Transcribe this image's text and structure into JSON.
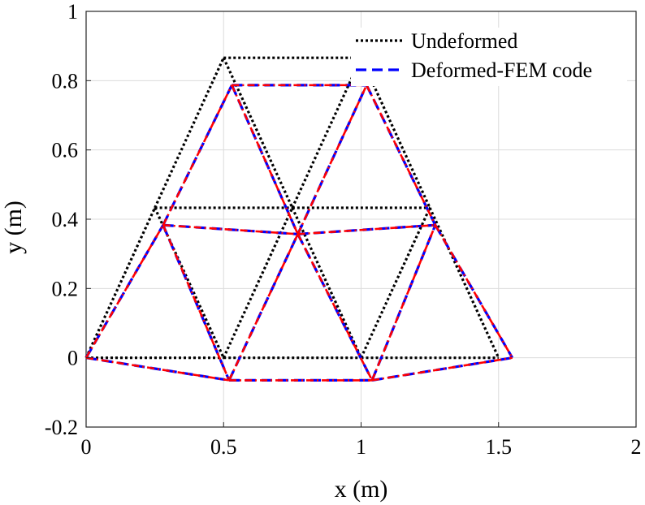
{
  "chart_data": {
    "type": "line",
    "title": "",
    "xlabel": "x (m)",
    "ylabel": "y (m)",
    "xlim": [
      0,
      2
    ],
    "ylim": [
      -0.2,
      1
    ],
    "grid": true,
    "legend_position": "top-right",
    "x_ticks": [
      0,
      0.5,
      1,
      1.5,
      2
    ],
    "x_tick_labels": [
      "0",
      "0.5",
      "1",
      "1.5",
      "2"
    ],
    "y_ticks": [
      -0.2,
      0,
      0.2,
      0.4,
      0.6,
      0.8,
      1
    ],
    "y_tick_labels": [
      "-0.2",
      "0",
      "0.2",
      "0.4",
      "0.6",
      "0.8",
      "1"
    ],
    "series": [
      {
        "name": "Undeformed",
        "color": "#000000",
        "style": "dotted",
        "nodes": [
          [
            0,
            0
          ],
          [
            0.5,
            0
          ],
          [
            1,
            0
          ],
          [
            1.5,
            0
          ],
          [
            0.25,
            0.433
          ],
          [
            0.75,
            0.433
          ],
          [
            1.25,
            0.433
          ],
          [
            0.5,
            0.866
          ],
          [
            1,
            0.866
          ]
        ],
        "members": [
          [
            0,
            1
          ],
          [
            1,
            2
          ],
          [
            2,
            3
          ],
          [
            0,
            4
          ],
          [
            4,
            1
          ],
          [
            1,
            5
          ],
          [
            5,
            2
          ],
          [
            2,
            6
          ],
          [
            6,
            3
          ],
          [
            4,
            5
          ],
          [
            5,
            6
          ],
          [
            4,
            7
          ],
          [
            7,
            5
          ],
          [
            5,
            8
          ],
          [
            8,
            6
          ],
          [
            7,
            8
          ]
        ]
      },
      {
        "name": "Deformed-FEM code",
        "color": "#0000ff",
        "style": "dashed",
        "nodes": [
          [
            0,
            0
          ],
          [
            0.52,
            -0.065
          ],
          [
            1.04,
            -0.065
          ],
          [
            1.55,
            0
          ],
          [
            0.28,
            0.383
          ],
          [
            0.77,
            0.357
          ],
          [
            1.27,
            0.383
          ],
          [
            0.53,
            0.787
          ],
          [
            1.02,
            0.787
          ]
        ],
        "members": [
          [
            0,
            1
          ],
          [
            1,
            2
          ],
          [
            2,
            3
          ],
          [
            0,
            4
          ],
          [
            4,
            1
          ],
          [
            1,
            5
          ],
          [
            5,
            2
          ],
          [
            2,
            6
          ],
          [
            6,
            3
          ],
          [
            4,
            5
          ],
          [
            5,
            6
          ],
          [
            4,
            7
          ],
          [
            7,
            5
          ],
          [
            5,
            8
          ],
          [
            8,
            6
          ],
          [
            7,
            8
          ]
        ]
      },
      {
        "color": "#ff0000",
        "style": "dash-dot",
        "nodes": [
          [
            0,
            0
          ],
          [
            0.52,
            -0.065
          ],
          [
            1.04,
            -0.065
          ],
          [
            1.55,
            0
          ],
          [
            0.28,
            0.383
          ],
          [
            0.77,
            0.357
          ],
          [
            1.27,
            0.383
          ],
          [
            0.53,
            0.787
          ],
          [
            1.02,
            0.787
          ]
        ],
        "members": [
          [
            0,
            1
          ],
          [
            1,
            2
          ],
          [
            2,
            3
          ],
          [
            0,
            4
          ],
          [
            4,
            1
          ],
          [
            1,
            5
          ],
          [
            5,
            2
          ],
          [
            2,
            6
          ],
          [
            6,
            3
          ],
          [
            4,
            5
          ],
          [
            5,
            6
          ],
          [
            4,
            7
          ],
          [
            7,
            5
          ],
          [
            5,
            8
          ],
          [
            8,
            6
          ],
          [
            7,
            8
          ]
        ]
      }
    ]
  }
}
